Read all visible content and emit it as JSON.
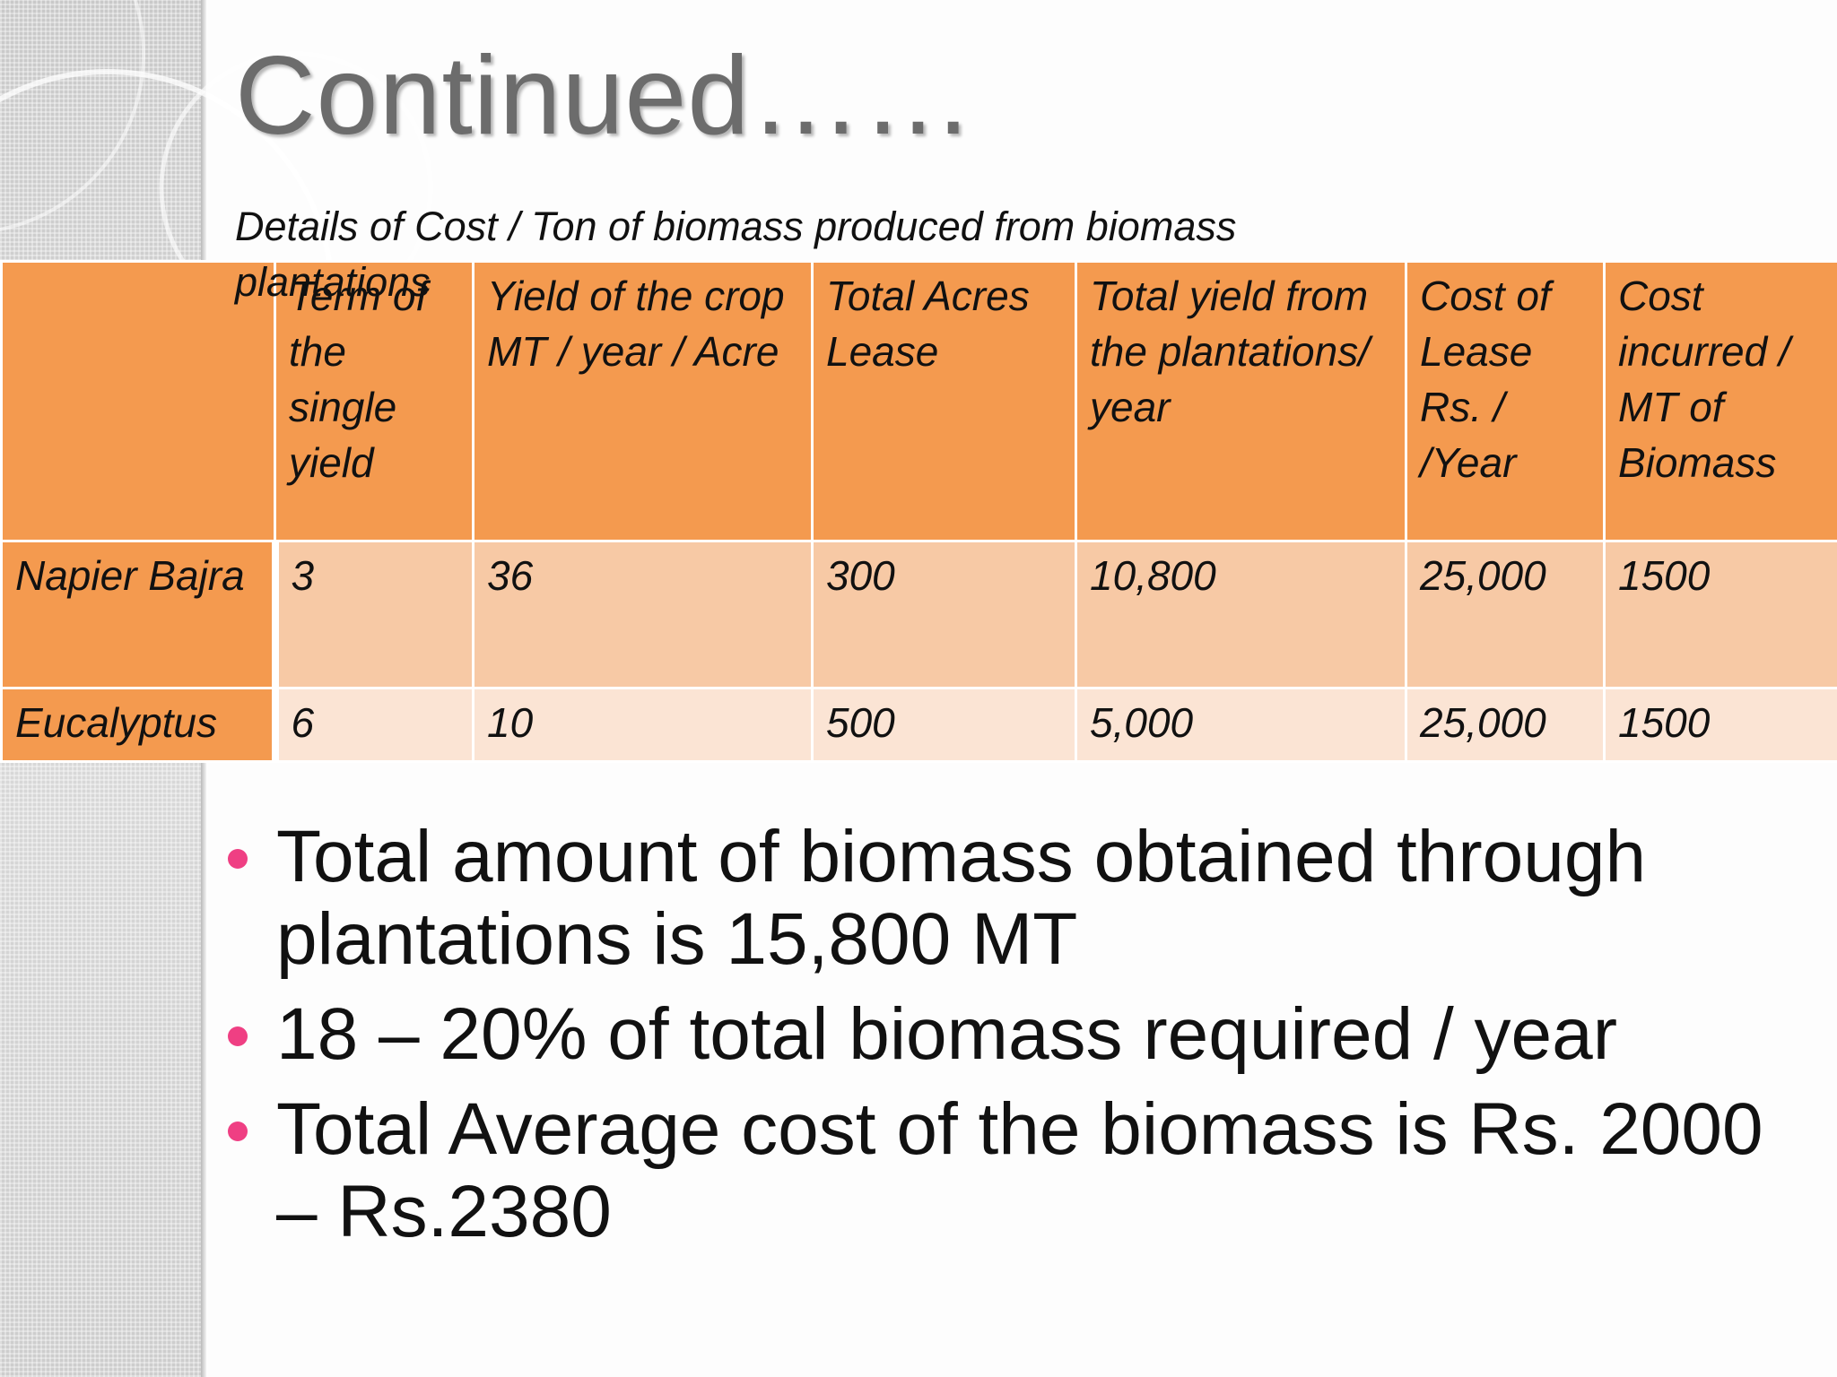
{
  "slide": {
    "title": "Continued……",
    "caption": "Details of Cost / Ton of biomass produced from biomass plantations"
  },
  "table": {
    "headers": [
      "",
      "Term of the single yield",
      "Yield of the crop MT / year / Acre",
      "Total Acres Lease",
      "Total yield from the plantations/ year",
      "Cost of Lease Rs. / /Year",
      "Cost incurred / MT of Biomass"
    ],
    "rows": [
      [
        "Napier Bajra",
        "3",
        "36",
        "300",
        "10,800",
        "25,000",
        "1500"
      ],
      [
        "Eucalyptus",
        "6",
        "10",
        "500",
        "5,000",
        "25,000",
        "1500"
      ]
    ]
  },
  "bullets": [
    "Total amount of biomass obtained through plantations is 15,800 MT",
    "18 – 20% of total biomass required / year",
    "Total Average cost of the biomass is Rs. 2000 – Rs.2380"
  ],
  "colors": {
    "header_orange": "#f49a4f",
    "row1_fill": "#f7c9a5",
    "row2_fill": "#fbe4d4",
    "bullet_pink": "#ef3f83",
    "title_gray": "#6c6c6c"
  }
}
